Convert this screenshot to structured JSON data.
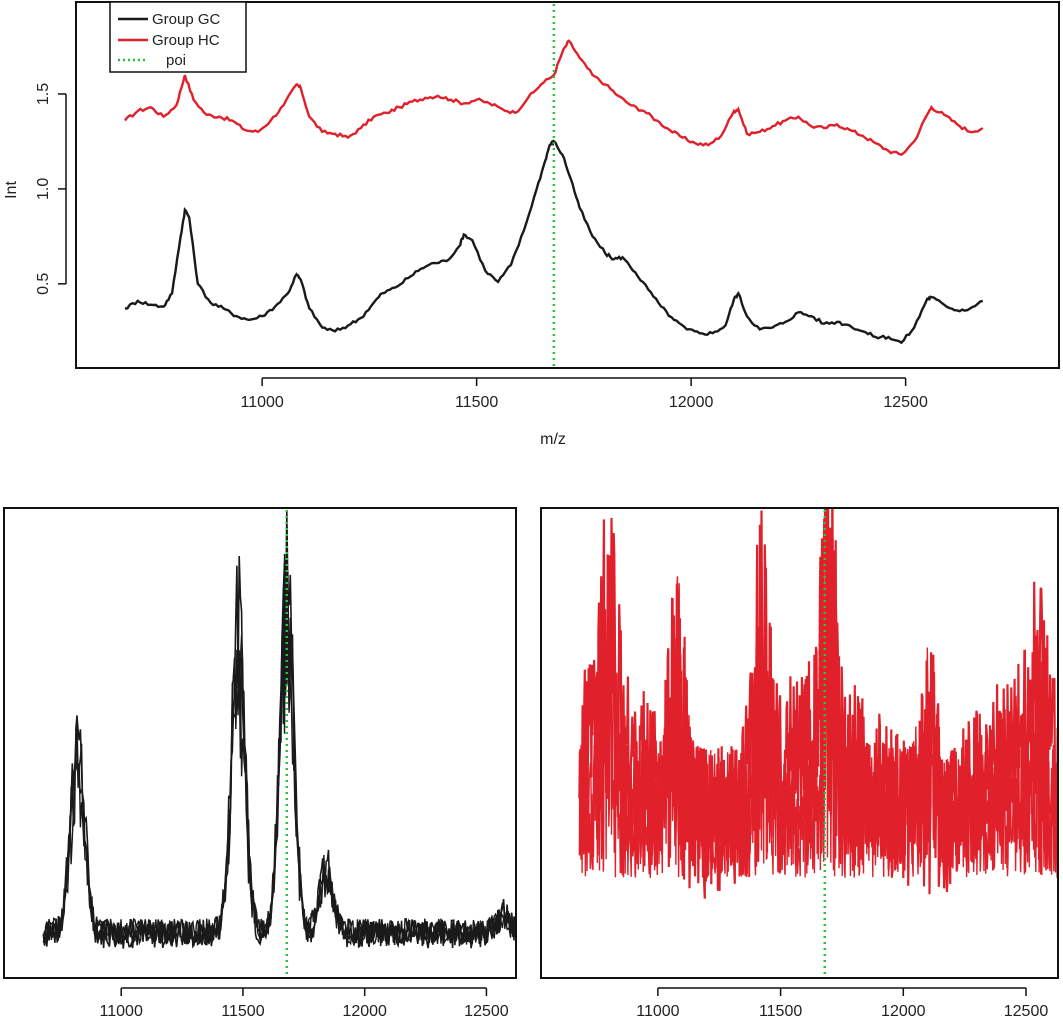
{
  "colors": {
    "group_gc": "#1a1a1a",
    "group_hc": "#e0202a",
    "poi": "#2fbf3a",
    "frame": "#111111"
  },
  "chart_data": [
    {
      "id": "mean_spectra",
      "type": "line",
      "title": "",
      "xlabel": "m/z",
      "ylabel": "Int",
      "xlim": [
        10650,
        12720
      ],
      "ylim": [
        0.12,
        1.9
      ],
      "xticks": [
        11000,
        11500,
        12000,
        12500
      ],
      "yticks": [
        0.5,
        1.0,
        1.5
      ],
      "ytick_labels": [
        "0.5",
        "1.0",
        "1.5"
      ],
      "legend": {
        "position": "top-left",
        "entries": [
          {
            "label": "Group GC",
            "color": "#1a1a1a",
            "style": "solid"
          },
          {
            "label": "Group HC",
            "color": "#e0202a",
            "style": "solid"
          },
          {
            "label": "poi",
            "color": "#2fbf3a",
            "style": "dotted"
          }
        ]
      },
      "vline": {
        "x": 11680,
        "label": "poi"
      },
      "series": [
        {
          "name": "Group HC",
          "color": "#e0202a",
          "x": [
            10680,
            10710,
            10740,
            10770,
            10800,
            10820,
            10840,
            10870,
            10900,
            10930,
            10960,
            10990,
            11020,
            11050,
            11080,
            11090,
            11110,
            11140,
            11170,
            11200,
            11230,
            11260,
            11290,
            11320,
            11350,
            11380,
            11410,
            11440,
            11470,
            11500,
            11530,
            11560,
            11590,
            11620,
            11650,
            11680,
            11700,
            11715,
            11740,
            11770,
            11800,
            11830,
            11860,
            11890,
            11920,
            11950,
            11980,
            12010,
            12040,
            12070,
            12100,
            12110,
            12130,
            12160,
            12190,
            12220,
            12250,
            12280,
            12310,
            12340,
            12370,
            12400,
            12430,
            12460,
            12490,
            12520,
            12550,
            12560,
            12590,
            12620,
            12650,
            12680
          ],
          "y": [
            1.36,
            1.41,
            1.43,
            1.38,
            1.44,
            1.6,
            1.47,
            1.39,
            1.38,
            1.36,
            1.31,
            1.3,
            1.36,
            1.44,
            1.55,
            1.53,
            1.38,
            1.3,
            1.29,
            1.27,
            1.32,
            1.38,
            1.4,
            1.43,
            1.46,
            1.48,
            1.49,
            1.47,
            1.45,
            1.47,
            1.45,
            1.42,
            1.4,
            1.48,
            1.55,
            1.6,
            1.72,
            1.78,
            1.69,
            1.6,
            1.55,
            1.49,
            1.44,
            1.41,
            1.36,
            1.31,
            1.27,
            1.24,
            1.23,
            1.28,
            1.41,
            1.42,
            1.29,
            1.3,
            1.33,
            1.36,
            1.38,
            1.33,
            1.32,
            1.34,
            1.31,
            1.28,
            1.24,
            1.2,
            1.18,
            1.25,
            1.39,
            1.43,
            1.39,
            1.34,
            1.3,
            1.32
          ]
        },
        {
          "name": "Group GC",
          "color": "#1a1a1a",
          "x": [
            10680,
            10710,
            10740,
            10770,
            10790,
            10810,
            10820,
            10830,
            10850,
            10880,
            10910,
            10940,
            10970,
            11000,
            11030,
            11060,
            11080,
            11090,
            11110,
            11140,
            11170,
            11200,
            11230,
            11260,
            11280,
            11310,
            11340,
            11370,
            11400,
            11430,
            11460,
            11470,
            11490,
            11520,
            11550,
            11580,
            11610,
            11640,
            11660,
            11670,
            11680,
            11700,
            11720,
            11740,
            11770,
            11800,
            11820,
            11840,
            11870,
            11900,
            11930,
            11960,
            11990,
            12020,
            12050,
            12080,
            12100,
            12110,
            12130,
            12160,
            12190,
            12220,
            12250,
            12280,
            12310,
            12340,
            12370,
            12400,
            12430,
            12460,
            12490,
            12520,
            12550,
            12560,
            12590,
            12620,
            12650,
            12680
          ],
          "y": [
            0.37,
            0.41,
            0.39,
            0.38,
            0.45,
            0.75,
            0.89,
            0.85,
            0.5,
            0.4,
            0.37,
            0.33,
            0.31,
            0.33,
            0.38,
            0.45,
            0.55,
            0.52,
            0.37,
            0.27,
            0.25,
            0.28,
            0.32,
            0.4,
            0.45,
            0.48,
            0.53,
            0.58,
            0.61,
            0.62,
            0.7,
            0.76,
            0.73,
            0.57,
            0.51,
            0.6,
            0.78,
            1.0,
            1.15,
            1.23,
            1.25,
            1.18,
            1.05,
            0.9,
            0.75,
            0.66,
            0.63,
            0.64,
            0.56,
            0.47,
            0.38,
            0.31,
            0.26,
            0.24,
            0.24,
            0.28,
            0.42,
            0.45,
            0.33,
            0.26,
            0.27,
            0.3,
            0.35,
            0.33,
            0.29,
            0.3,
            0.28,
            0.25,
            0.22,
            0.22,
            0.19,
            0.27,
            0.42,
            0.43,
            0.39,
            0.36,
            0.37,
            0.41
          ]
        }
      ]
    },
    {
      "id": "individual_spectra_gc",
      "type": "line",
      "title": "",
      "xlabel": "",
      "ylabel": "",
      "xlim": [
        10650,
        12720
      ],
      "xticks": [
        11000,
        11500,
        12000,
        12500
      ],
      "vline": {
        "x": 11680
      },
      "color": "#1a1a1a",
      "peaks": [
        [
          10820,
          0.55
        ],
        [
          11480,
          0.86
        ],
        [
          11680,
          1.0
        ],
        [
          11840,
          0.18
        ],
        [
          12570,
          0.05
        ]
      ]
    },
    {
      "id": "individual_spectra_hc",
      "type": "line",
      "title": "",
      "xlabel": "",
      "ylabel": "",
      "xlim": [
        10650,
        12720
      ],
      "xticks": [
        11000,
        11500,
        12000,
        12500
      ],
      "vline": {
        "x": 11680
      },
      "color": "#e0202a",
      "peaks": [
        [
          10800,
          0.8
        ],
        [
          11080,
          0.72
        ],
        [
          11420,
          0.78
        ],
        [
          11700,
          1.0
        ],
        [
          12100,
          0.5
        ],
        [
          12550,
          0.4
        ]
      ]
    }
  ]
}
